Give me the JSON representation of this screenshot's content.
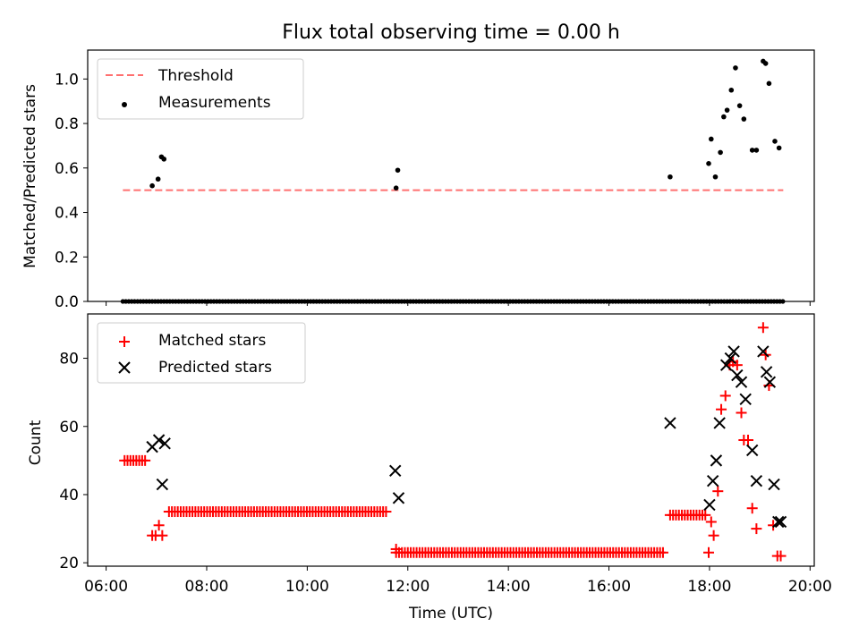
{
  "chart_data": [
    {
      "type": "scatter",
      "title": "Flux total observing time = 0.00 h",
      "ylabel": "Matched/Predicted stars",
      "xlabel": "",
      "xlim": [
        "06:00",
        "20:00"
      ],
      "ylim": [
        0.0,
        1.13
      ],
      "yticks": [
        "0.0",
        "0.2",
        "0.4",
        "0.6",
        "0.8",
        "1.0"
      ],
      "legend": {
        "placement": "top-left",
        "entries": [
          "Threshold",
          "Measurements"
        ]
      },
      "colors": {
        "threshold": "#ff7070",
        "measurements": "#000000"
      },
      "threshold": {
        "name": "Threshold",
        "y": 0.5,
        "x": [
          "06:20",
          "19:28"
        ]
      },
      "series": [
        {
          "name": "Measurements",
          "x": [
            "06:55",
            "07:02",
            "07:06",
            "07:09",
            "11:46",
            "11:48",
            "17:13",
            "17:59",
            "18:02",
            "18:07",
            "18:13",
            "18:17",
            "18:21",
            "18:26",
            "18:31",
            "18:36",
            "18:41",
            "18:51",
            "18:56",
            "19:04",
            "19:07",
            "19:11",
            "19:18",
            "19:23"
          ],
          "y": [
            0.52,
            0.55,
            0.65,
            0.64,
            0.51,
            0.59,
            0.56,
            0.62,
            0.73,
            0.56,
            0.67,
            0.83,
            0.86,
            0.95,
            1.05,
            0.88,
            0.82,
            0.68,
            0.68,
            1.08,
            1.07,
            0.98,
            0.72,
            0.69
          ]
        },
        {
          "name": "Measurements (zero)",
          "x_start": "06:20",
          "x_end": "19:28",
          "step_minutes": 3.5,
          "y": 0.0
        }
      ]
    },
    {
      "type": "scatter",
      "title": "",
      "xlabel": "Time (UTC)",
      "ylabel": "Count",
      "xlim": [
        "06:00",
        "20:00"
      ],
      "ylim": [
        19,
        93
      ],
      "xticks": [
        "06:00",
        "08:00",
        "10:00",
        "12:00",
        "14:00",
        "16:00",
        "18:00",
        "20:00"
      ],
      "yticks": [
        "20",
        "40",
        "60",
        "80"
      ],
      "legend": {
        "placement": "top-left",
        "entries": [
          "Matched stars",
          "Predicted stars"
        ]
      },
      "colors": {
        "matched": "#ff0000",
        "predicted": "#000000"
      },
      "series": [
        {
          "name": "Matched stars",
          "runs": [
            {
              "from": "06:22",
              "to": "06:47",
              "y": 50
            },
            {
              "from": "07:15",
              "to": "11:35",
              "y": 35
            },
            {
              "from": "11:46",
              "to": "17:06",
              "y": 23
            },
            {
              "from": "17:13",
              "to": "17:55",
              "y": 34
            }
          ],
          "step_minutes": 3.5,
          "x": [
            "06:55",
            "06:59",
            "07:03",
            "07:07",
            "11:46",
            "17:59",
            "18:02",
            "18:05",
            "18:10",
            "18:14",
            "18:19",
            "18:24",
            "18:28",
            "18:33",
            "18:38",
            "18:41",
            "18:46",
            "18:51",
            "18:56",
            "19:04",
            "19:07",
            "19:11",
            "19:16",
            "19:21",
            "19:25"
          ],
          "y": [
            28,
            28,
            31,
            28,
            24,
            23,
            32,
            28,
            41,
            65,
            69,
            78,
            79,
            78,
            64,
            56,
            56,
            36,
            30,
            89,
            81,
            72,
            31,
            22,
            22
          ]
        },
        {
          "name": "Predicted stars",
          "x": [
            "06:55",
            "07:03",
            "07:07",
            "07:10",
            "11:45",
            "11:49",
            "17:13",
            "18:00",
            "18:04",
            "18:08",
            "18:12",
            "18:20",
            "18:25",
            "18:29",
            "18:33",
            "18:38",
            "18:43",
            "18:51",
            "18:56",
            "19:04",
            "19:08",
            "19:12",
            "19:17",
            "19:22",
            "19:25"
          ],
          "y": [
            54,
            56,
            43,
            55,
            47,
            39,
            61,
            37,
            44,
            50,
            61,
            78,
            80,
            82,
            75,
            73,
            68,
            53,
            44,
            82,
            76,
            73,
            43,
            32,
            32
          ]
        }
      ]
    }
  ]
}
